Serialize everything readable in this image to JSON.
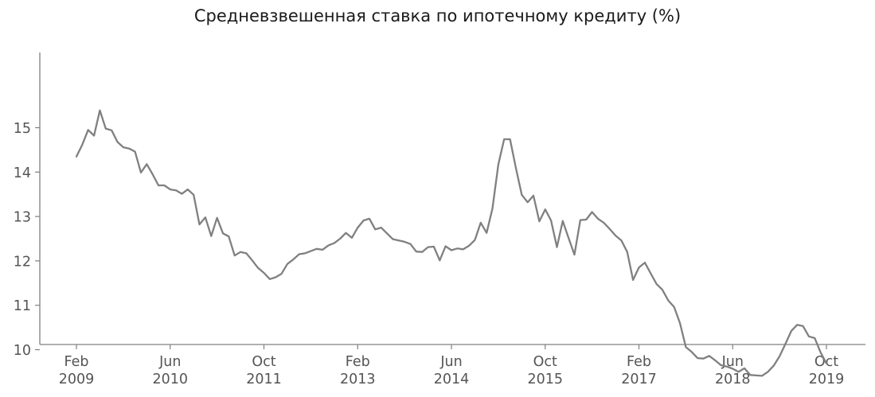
{
  "chart_data": {
    "type": "line",
    "title": "Средневзвешенная ставка по ипотечному кредиту (%)",
    "xlabel": "",
    "ylabel": "",
    "ylim": [
      9.15,
      15.7
    ],
    "grid": false,
    "legend": "none",
    "colors": {
      "line": "#808080",
      "axis": "#808080",
      "text": "#555555"
    },
    "x_ticks": [
      {
        "month": 0,
        "label": [
          "Feb",
          "2009"
        ]
      },
      {
        "month": 16,
        "label": [
          "Jun",
          "2010"
        ]
      },
      {
        "month": 32,
        "label": [
          "Oct",
          "2011"
        ]
      },
      {
        "month": 48,
        "label": [
          "Feb",
          "2013"
        ]
      },
      {
        "month": 64,
        "label": [
          "Jun",
          "2014"
        ]
      },
      {
        "month": 80,
        "label": [
          "Oct",
          "2015"
        ]
      },
      {
        "month": 96,
        "label": [
          "Feb",
          "2017"
        ]
      },
      {
        "month": 112,
        "label": [
          "Jun",
          "2018"
        ]
      },
      {
        "month": 128,
        "label": [
          "Oct",
          "2019"
        ]
      }
    ],
    "y_ticks": [
      10,
      11,
      12,
      13,
      14,
      15
    ],
    "series": [
      {
        "start": "Feb 2009",
        "values": [
          14.35,
          14.62,
          14.95,
          14.82,
          15.39,
          14.98,
          14.94,
          14.68,
          14.56,
          14.53,
          14.46,
          13.99,
          14.18,
          13.95,
          13.7,
          13.7,
          13.61,
          13.59,
          13.51,
          13.61,
          13.49,
          12.82,
          12.98,
          12.56,
          12.97,
          12.62,
          12.55,
          12.12,
          12.2,
          12.17,
          12.01,
          11.84,
          11.73,
          11.59,
          11.63,
          11.71,
          11.93,
          12.03,
          12.15,
          12.17,
          12.22,
          12.27,
          12.25,
          12.35,
          12.4,
          12.5,
          12.63,
          12.52,
          12.75,
          12.91,
          12.95,
          12.71,
          12.75,
          12.62,
          12.49,
          12.46,
          12.43,
          12.38,
          12.21,
          12.2,
          12.31,
          12.32,
          12.01,
          12.33,
          12.24,
          12.28,
          12.26,
          12.34,
          12.47,
          12.86,
          12.63,
          13.18,
          14.17,
          14.74,
          14.74,
          14.09,
          13.49,
          13.32,
          13.47,
          12.89,
          13.16,
          12.91,
          12.31,
          12.9,
          12.51,
          12.14,
          12.92,
          12.93,
          13.1,
          12.95,
          12.86,
          12.72,
          12.57,
          12.46,
          12.2,
          11.57,
          11.85,
          11.96,
          11.72,
          11.48,
          11.35,
          11.11,
          10.96,
          10.6,
          10.06,
          9.95,
          9.81,
          9.8,
          9.86,
          9.76,
          9.65,
          9.62,
          9.57,
          9.5,
          9.58,
          9.43,
          9.42,
          9.41,
          9.5,
          9.64,
          9.85,
          10.13,
          10.42,
          10.56,
          10.53,
          10.3,
          10.26,
          9.94,
          9.69
        ]
      }
    ]
  }
}
